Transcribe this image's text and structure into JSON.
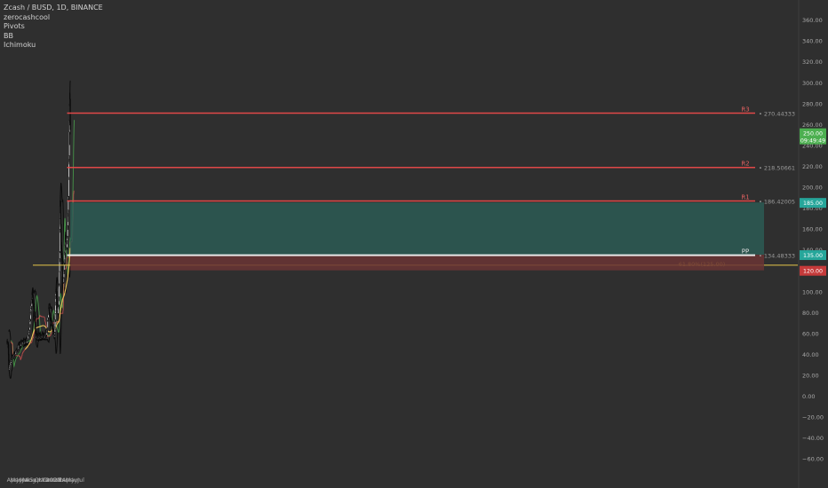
{
  "legend": {
    "symbol": "Zcash / BUSD, 1D, BINANCE",
    "indicators": [
      "zerocashcool",
      "Pivots",
      "BB",
      "Ichimoku"
    ]
  },
  "colors": {
    "background": "#2f2f2f",
    "candle": "#0a0a0a",
    "bollinger": "#0c0c0c",
    "ma_line": "#e8c25a",
    "fib_line": "#e6c84a",
    "pivot_line": "#e04848",
    "pp_line": "#e8e8e8",
    "cloud_green": "#4caf50",
    "cloud_red": "#e05454",
    "take_profit_zone": "#2c5a54",
    "stop_loss_zone": "#6a3434",
    "price_badge": "#4caf50",
    "target_badge": "#26a69a",
    "stop_badge": "#c53a3a",
    "axis_text": "#a8a8a8"
  },
  "chart_data": {
    "type": "candlestick",
    "title": "Zcash / BUSD, 1D, BINANCE",
    "x_ticks": [
      "Mar",
      "Apr",
      "May",
      "Jun",
      "Jul",
      "Aug",
      "Sep",
      "Oct",
      "Nov",
      "Dec",
      "2021",
      "Feb",
      "Mar",
      "Apr",
      "May",
      "Jun",
      "Jul"
    ],
    "y_ticks": [
      360,
      340,
      320,
      300,
      280,
      260,
      240,
      220,
      200,
      180,
      160,
      140,
      120,
      100,
      80,
      60,
      40,
      20,
      0,
      -20,
      -40,
      -60
    ],
    "y_tick_labels": [
      "360.00",
      "340.00",
      "320.00",
      "300.00",
      "280.00",
      "260.00",
      "240.00",
      "220.00",
      "200.00",
      "180.00",
      "160.00",
      "140.00",
      "120.00",
      "100.00",
      "80.00",
      "60.00",
      "40.00",
      "20.00",
      "0.00",
      "−20.00",
      "−40.00",
      "−60.00"
    ],
    "ylim": [
      -68,
      372
    ],
    "price_path": [
      [
        "2020-03-01",
        52
      ],
      [
        "2020-03-10",
        48
      ],
      [
        "2020-03-13",
        25
      ],
      [
        "2020-03-20",
        30
      ],
      [
        "2020-04-01",
        36
      ],
      [
        "2020-04-20",
        40
      ],
      [
        "2020-05-05",
        44
      ],
      [
        "2020-05-20",
        49
      ],
      [
        "2020-06-05",
        50
      ],
      [
        "2020-06-25",
        52
      ],
      [
        "2020-07-10",
        53
      ],
      [
        "2020-07-25",
        62
      ],
      [
        "2020-08-05",
        82
      ],
      [
        "2020-08-15",
        95
      ],
      [
        "2020-08-25",
        82
      ],
      [
        "2020-09-01",
        75
      ],
      [
        "2020-09-05",
        58
      ],
      [
        "2020-09-25",
        56
      ],
      [
        "2020-10-10",
        57
      ],
      [
        "2020-10-25",
        58
      ],
      [
        "2020-11-05",
        56
      ],
      [
        "2020-11-20",
        62
      ],
      [
        "2020-12-01",
        82
      ],
      [
        "2020-12-15",
        72
      ],
      [
        "2020-12-25",
        66
      ],
      [
        "2021-01-05",
        58
      ],
      [
        "2021-01-10",
        62
      ],
      [
        "2021-01-18",
        105
      ],
      [
        "2021-01-28",
        80
      ],
      [
        "2021-02-05",
        85
      ],
      [
        "2021-02-10",
        130
      ],
      [
        "2021-02-14",
        185
      ],
      [
        "2021-02-20",
        150
      ],
      [
        "2021-02-28",
        130
      ],
      [
        "2021-03-07",
        110
      ],
      [
        "2021-03-15",
        130
      ],
      [
        "2021-03-22",
        150
      ],
      [
        "2021-04-01",
        145
      ],
      [
        "2021-04-06",
        175
      ],
      [
        "2021-04-11",
        200
      ],
      [
        "2021-04-15",
        240
      ],
      [
        "2021-04-19",
        290
      ],
      [
        "2021-04-22",
        250
      ]
    ],
    "last_price": "250.00",
    "countdown": "09:49:49",
    "levels": [
      {
        "name": "R3",
        "value": 270.44333,
        "label": "270.44333"
      },
      {
        "name": "R2",
        "value": 218.50661,
        "label": "218.50661"
      },
      {
        "name": "R1",
        "value": 186.42005,
        "label": "186.42005"
      },
      {
        "name": "PP",
        "value": 134.48333,
        "label": "134.48333"
      }
    ],
    "fib_level": {
      "label": "61.80%(125.00)",
      "value": 125
    },
    "position": {
      "target": "185.00",
      "entry": "135.00",
      "stop": "120.00"
    }
  }
}
